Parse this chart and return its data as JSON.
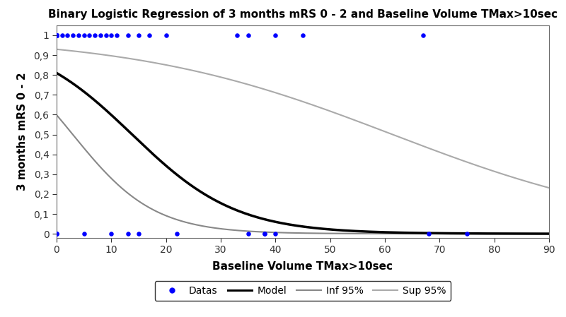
{
  "title": "Binary Logistic Regression of 3 months mRS 0 - 2 and Baseline Volume TMax>10sec",
  "xlabel": "Baseline Volume TMax>10sec",
  "ylabel": "3 months mRS 0 - 2",
  "xlim": [
    0,
    90
  ],
  "ylim": [
    -0.02,
    1.05
  ],
  "yticks": [
    0,
    0.1,
    0.2,
    0.3,
    0.4,
    0.5,
    0.6,
    0.7,
    0.8,
    0.9,
    1.0
  ],
  "ytick_labels": [
    "0",
    "0,1",
    "0,2",
    "0,3",
    "0,4",
    "0,5",
    "0,6",
    "0,7",
    "0,8",
    "0,9",
    "1"
  ],
  "xticks": [
    0,
    10,
    20,
    30,
    40,
    50,
    60,
    70,
    80,
    90
  ],
  "model_intercept": 1.45,
  "model_coef": -0.105,
  "inf95_intercept": 0.4,
  "inf95_coef": -0.135,
  "sup95_intercept": 2.58,
  "sup95_coef": -0.042,
  "data_x_0": [
    0,
    0,
    0,
    0,
    5,
    10,
    13,
    15,
    22,
    35,
    38,
    38,
    40,
    68,
    75
  ],
  "data_y_0": [
    0,
    0,
    0,
    0,
    0,
    0,
    0,
    0,
    0,
    0,
    0,
    0,
    0,
    0,
    0
  ],
  "data_x_1": [
    0,
    0,
    0,
    0,
    0,
    0,
    0,
    0,
    0,
    1,
    2,
    3,
    4,
    5,
    6,
    7,
    8,
    9,
    10,
    11,
    13,
    15,
    17,
    20,
    33,
    35,
    40,
    45,
    67
  ],
  "data_y_1": [
    1,
    1,
    1,
    1,
    1,
    1,
    1,
    1,
    1,
    1,
    1,
    1,
    1,
    1,
    1,
    1,
    1,
    1,
    1,
    1,
    1,
    1,
    1,
    1,
    1,
    1,
    1,
    1,
    1
  ],
  "dot_color": "#0000FF",
  "model_color": "#000000",
  "inf95_color": "#888888",
  "sup95_color": "#AAAAAA",
  "model_lw": 2.5,
  "ci_lw": 1.5,
  "dot_size": 22,
  "figsize": [
    8.0,
    4.49
  ],
  "dpi": 100,
  "bg_color": "#FFFFFF",
  "legend_fontsize": 10,
  "title_fontsize": 11,
  "label_fontsize": 11,
  "tick_fontsize": 10
}
